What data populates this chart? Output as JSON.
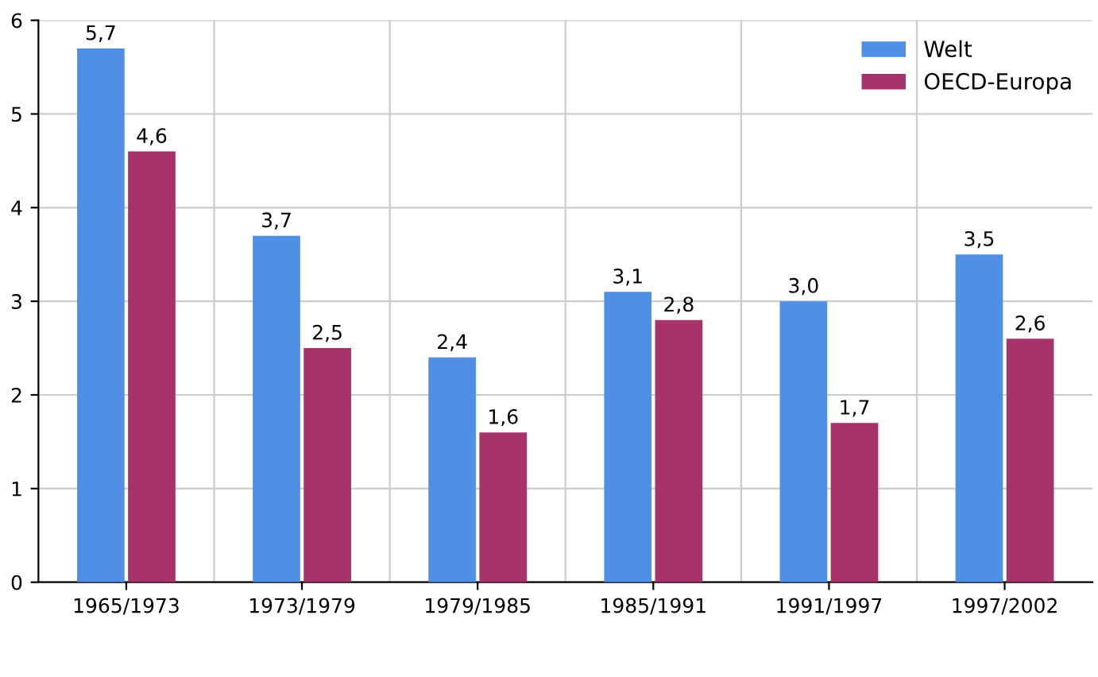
{
  "chart_data": {
    "type": "bar",
    "categories": [
      "1965/1973",
      "1973/1979",
      "1979/1985",
      "1985/1991",
      "1991/1997",
      "1997/2002"
    ],
    "series": [
      {
        "name": "Welt",
        "color": "#4f8fe6",
        "values": [
          5.7,
          3.7,
          2.4,
          3.1,
          3.0,
          3.5
        ],
        "value_labels": [
          "5,7",
          "3,7",
          "2,4",
          "3,1",
          "3,0",
          "3,5"
        ]
      },
      {
        "name": "OECD-Europa",
        "color": "#a8336a",
        "values": [
          4.6,
          2.5,
          1.6,
          2.8,
          1.7,
          2.6
        ],
        "value_labels": [
          "4,6",
          "2,5",
          "1,6",
          "2,8",
          "1,7",
          "2,6"
        ]
      }
    ],
    "ylim": [
      0,
      6
    ],
    "yticks": [
      0,
      1,
      2,
      3,
      4,
      5,
      6
    ],
    "grid": true,
    "legend": "top right"
  }
}
